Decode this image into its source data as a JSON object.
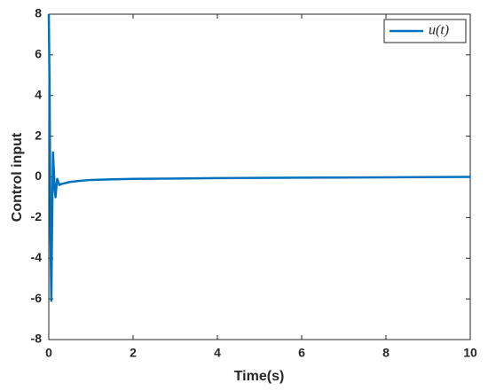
{
  "chart_data": {
    "type": "line",
    "xlabel": "Time(s)",
    "ylabel": "Control input",
    "x": [
      0,
      0.02,
      0.04,
      0.06,
      0.08,
      0.1,
      0.12,
      0.14,
      0.16,
      0.18,
      0.2,
      0.25,
      0.3,
      0.4,
      0.5,
      0.7,
      1,
      1.5,
      2,
      3,
      4,
      5,
      6,
      7,
      8,
      9,
      10
    ],
    "series": [
      {
        "name": "u(t)",
        "color": "#0072bd",
        "values": [
          8,
          4,
          -3,
          -6.1,
          -2,
          1.2,
          0.3,
          -0.6,
          -1.0,
          -0.5,
          -0.1,
          -0.4,
          -0.35,
          -0.3,
          -0.25,
          -0.2,
          -0.15,
          -0.12,
          -0.1,
          -0.08,
          -0.06,
          -0.05,
          -0.04,
          -0.03,
          -0.02,
          -0.01,
          0
        ]
      }
    ],
    "xlim": [
      0,
      10
    ],
    "xticks": [
      0,
      2,
      4,
      6,
      8,
      10
    ],
    "ylim": [
      -8,
      8
    ],
    "yticks": [
      -8,
      -6,
      -4,
      -2,
      0,
      2,
      4,
      6,
      8
    ],
    "grid": false,
    "legend": "northeast"
  }
}
